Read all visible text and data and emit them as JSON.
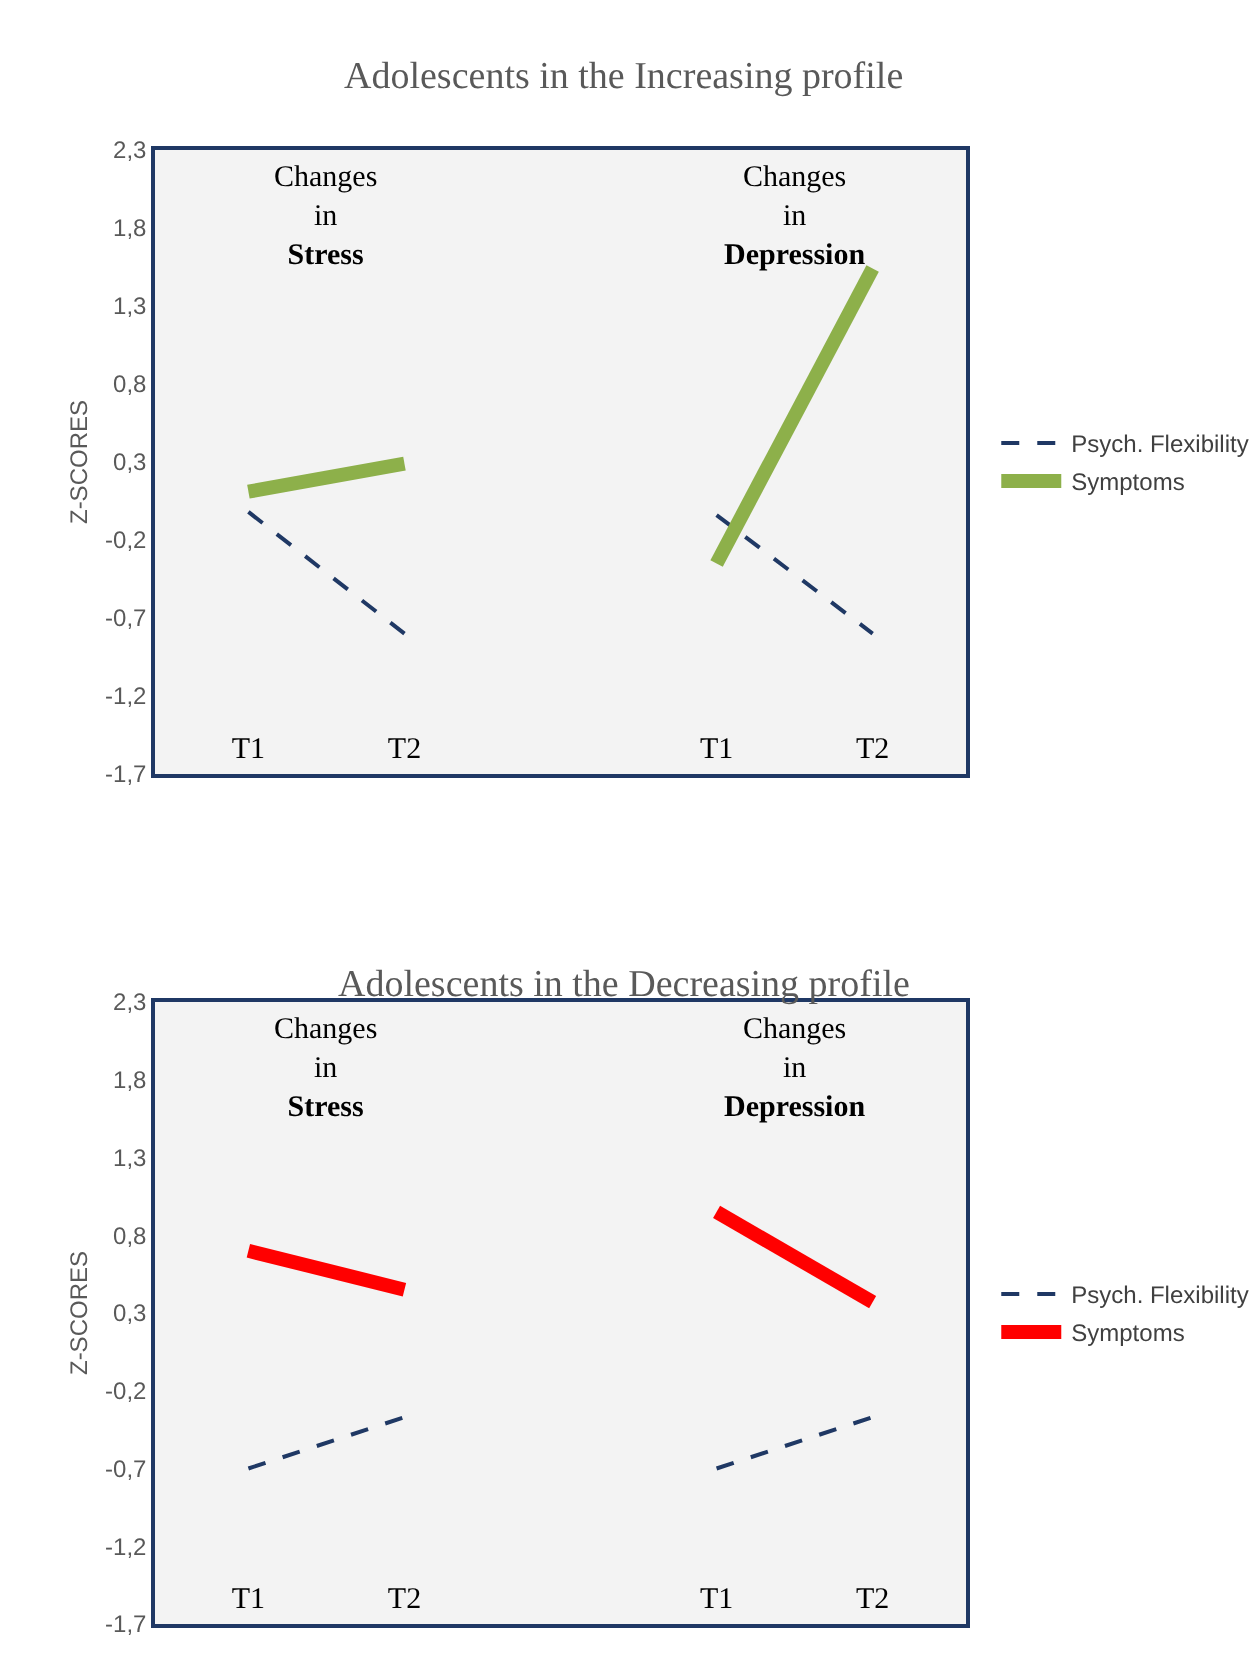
{
  "chart_data": [
    {
      "type": "line",
      "title": "Adolescents in the Increasing profile",
      "ylabel": "Z-SCORES",
      "categories": [
        "T1",
        "T2",
        null,
        "T1",
        "T2"
      ],
      "ylim": [
        -1.7,
        2.3
      ],
      "yticks": [
        {
          "value": 2.3,
          "label": "2,3"
        },
        {
          "value": 1.8,
          "label": "1,8"
        },
        {
          "value": 1.3,
          "label": "1,3"
        },
        {
          "value": 0.8,
          "label": "0,8"
        },
        {
          "value": 0.3,
          "label": "0,3"
        },
        {
          "value": -0.2,
          "label": "-0,2"
        },
        {
          "value": -0.7,
          "label": "-0,7"
        },
        {
          "value": -1.2,
          "label": "-1,2"
        },
        {
          "value": -1.7,
          "label": "-1,7"
        }
      ],
      "grid": false,
      "legend": "right",
      "annotations": [
        "Changes\nin\nStress",
        "Changes\nin\nDepression"
      ],
      "series": [
        {
          "name": "Psych. Flexibility",
          "color": "#1f3864",
          "line_style": "dashed",
          "values": [
            -0.02,
            -0.8,
            null,
            -0.04,
            -0.8
          ]
        },
        {
          "name": "Symptoms",
          "color": "#8db04a",
          "line_style": "solid",
          "values": [
            0.11,
            0.29,
            null,
            -0.35,
            1.54
          ]
        }
      ]
    },
    {
      "type": "line",
      "title": "Adolescents in the Decreasing profile",
      "ylabel": "Z-SCORES",
      "categories": [
        "T1",
        "T2",
        null,
        "T1",
        "T2"
      ],
      "ylim": [
        -1.7,
        2.3
      ],
      "yticks": [
        {
          "value": 2.3,
          "label": "2,3"
        },
        {
          "value": 1.8,
          "label": "1,8"
        },
        {
          "value": 1.3,
          "label": "1,3"
        },
        {
          "value": 0.8,
          "label": "0,8"
        },
        {
          "value": 0.3,
          "label": "0,3"
        },
        {
          "value": -0.2,
          "label": "-0,2"
        },
        {
          "value": -0.7,
          "label": "-0,7"
        },
        {
          "value": -1.2,
          "label": "-1,2"
        },
        {
          "value": -1.7,
          "label": "-1,7"
        }
      ],
      "grid": false,
      "legend": "right",
      "annotations": [
        "Changes\nin\nStress",
        "Changes\nin\nDepression"
      ],
      "series": [
        {
          "name": "Psych. Flexibility",
          "color": "#1f3864",
          "line_style": "dashed",
          "values": [
            -0.7,
            -0.37,
            null,
            -0.7,
            -0.37
          ]
        },
        {
          "name": "Symptoms",
          "color": "#ff0000",
          "line_style": "solid",
          "values": [
            0.7,
            0.45,
            null,
            0.95,
            0.37
          ]
        }
      ]
    }
  ]
}
